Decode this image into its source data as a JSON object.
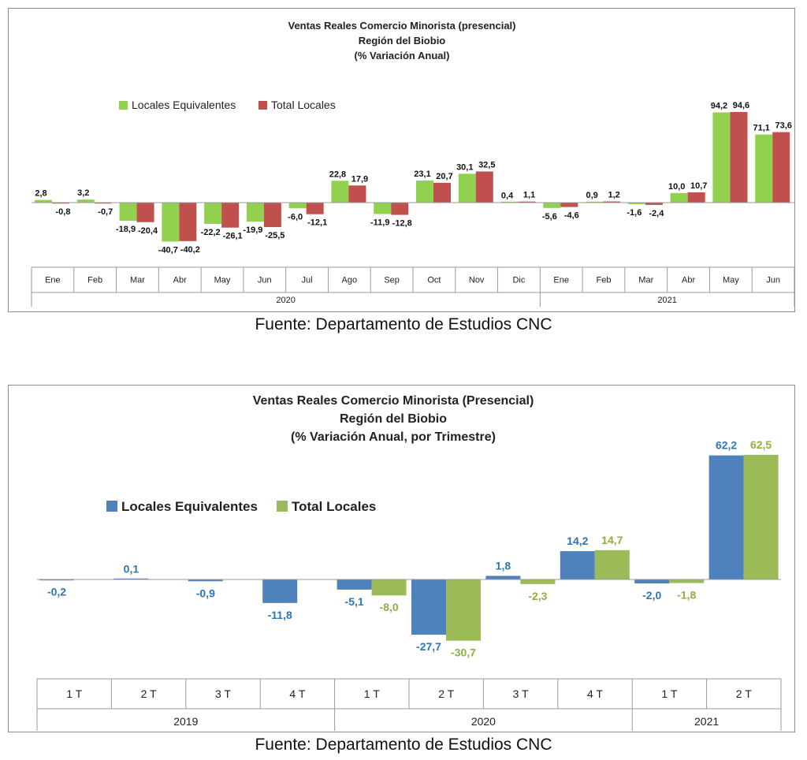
{
  "chart_data": [
    {
      "type": "bar",
      "title": [
        "Ventas Reales Comercio Minorista (presencial)",
        "Región del Biobio",
        "(% Variación Anual)"
      ],
      "categories": [
        "Ene",
        "Feb",
        "Mar",
        "Abr",
        "May",
        "Jun",
        "Jul",
        "Ago",
        "Sep",
        "Oct",
        "Nov",
        "Dic",
        "Ene",
        "Feb",
        "Mar",
        "Abr",
        "May",
        "Jun"
      ],
      "category_groups": [
        {
          "label": "2020",
          "count": 12
        },
        {
          "label": "2021",
          "count": 6
        }
      ],
      "series": [
        {
          "name": "Locales Equivalentes",
          "color": "#92d050",
          "values": [
            2.8,
            3.2,
            -18.9,
            -40.7,
            -22.2,
            -19.9,
            -6.0,
            22.8,
            -11.9,
            23.1,
            30.1,
            0.4,
            -5.6,
            0.9,
            -1.6,
            10.0,
            94.2,
            71.1
          ],
          "labels": [
            "2,8",
            "3,2",
            "-18,9",
            "-40,7",
            "-22,2",
            "-19,9",
            "-6,0",
            "22,8",
            "-11,9",
            "23,1",
            "30,1",
            "0,4",
            "-5,6",
            "0,9",
            "-1,6",
            "10,0",
            "94,2",
            "71,1"
          ]
        },
        {
          "name": "Total Locales",
          "color": "#c0504d",
          "values": [
            -0.8,
            -0.7,
            -20.4,
            -40.2,
            -26.1,
            -25.5,
            -12.1,
            17.9,
            -12.8,
            20.7,
            32.5,
            1.1,
            -4.6,
            1.2,
            -2.4,
            10.7,
            94.6,
            73.6
          ],
          "labels": [
            "-0,8",
            "-0,7",
            "-20,4",
            "-40,2",
            "-26,1",
            "-25,5",
            "-12,1",
            "17,9",
            "-12,8",
            "20,7",
            "32,5",
            "1,1",
            "-4,6",
            "1,2",
            "-2,4",
            "10,7",
            "94,6",
            "73,6"
          ]
        }
      ],
      "legend_position": "top-left",
      "grid": false,
      "source": "Fuente: Departamento de Estudios CNC"
    },
    {
      "type": "bar",
      "title": [
        "Ventas Reales Comercio Minorista (Presencial)",
        "Región del Biobio",
        "(% Variación Anual, por Trimestre)"
      ],
      "categories": [
        "1 T",
        "2 T",
        "3 T",
        "4 T",
        "1 T",
        "2 T",
        "3 T",
        "4 T",
        "1 T",
        "2 T"
      ],
      "category_groups": [
        {
          "label": "2019",
          "count": 4
        },
        {
          "label": "2020",
          "count": 4
        },
        {
          "label": "2021",
          "count": 2
        }
      ],
      "series": [
        {
          "name": "Locales Equivalentes",
          "color": "#4f81bd",
          "label_color": "#2e75b6",
          "values": [
            -0.2,
            0.1,
            -0.9,
            -11.8,
            -5.1,
            -27.7,
            1.8,
            14.2,
            -2.0,
            62.2
          ],
          "labels": [
            "-0,2",
            "0,1",
            "-0,9",
            "-11,8",
            "-5,1",
            "-27,7",
            "1,8",
            "14,2",
            "-2,0",
            "62,2"
          ]
        },
        {
          "name": "Total Locales",
          "color": "#9bbb59",
          "label_color": "#8db03f",
          "values": [
            null,
            null,
            null,
            null,
            -8.0,
            -30.7,
            -2.3,
            14.7,
            -1.8,
            62.5
          ],
          "labels": [
            "",
            "",
            "",
            "",
            "-8,0",
            "-30,7",
            "-2,3",
            "14,7",
            "-1,8",
            "62,5"
          ]
        }
      ],
      "legend_position": "top-left",
      "grid": false,
      "source": "Fuente: Departamento de Estudios CNC"
    }
  ]
}
